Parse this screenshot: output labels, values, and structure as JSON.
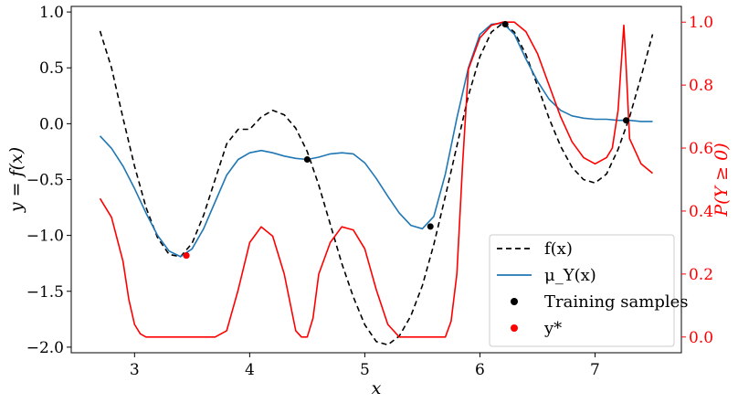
{
  "colors": {
    "f_line": "#000000",
    "mu_line": "#1f77b4",
    "prob_line": "#ff0000",
    "training_marker": "#000000",
    "ystar_marker": "#ff0000",
    "axis": "#000000",
    "right_axis": "#ff0000",
    "legend_border": "#cccccc"
  },
  "chart_data": {
    "type": "line",
    "title": "",
    "xlabel": "x",
    "ylabel": "y = f(x)",
    "ylabel_right": "P(Y ≥ 0)",
    "xlim": [
      2.45,
      7.75
    ],
    "ylim": [
      -2.05,
      1.05
    ],
    "ylim_right": [
      -0.05,
      1.05
    ],
    "x_ticks": [
      3,
      4,
      5,
      6,
      7
    ],
    "x_tick_labels": [
      "3",
      "4",
      "5",
      "6",
      "7"
    ],
    "y_ticks": [
      1.0,
      0.5,
      0.0,
      -0.5,
      -1.0,
      -1.5,
      -2.0
    ],
    "y_tick_labels": [
      "1.0",
      "0.5",
      "0.0",
      "−0.5",
      "−1.0",
      "−1.5",
      "−2.0"
    ],
    "y_right_ticks": [
      1.0,
      0.8,
      0.6,
      0.4,
      0.2,
      0.0
    ],
    "y_right_tick_labels": [
      "1.0",
      "0.8",
      "0.6",
      "0.4",
      "0.2",
      "0.0"
    ],
    "grid": false,
    "legend_position": "lower-right",
    "legend": [
      "f(x)",
      "μ_Y(x)",
      "Training samples",
      "y*"
    ],
    "series": [
      {
        "name": "f(x)",
        "axis": "left",
        "style": "dashed",
        "x": [
          2.7,
          2.8,
          2.9,
          3.0,
          3.1,
          3.2,
          3.3,
          3.4,
          3.5,
          3.6,
          3.7,
          3.8,
          3.9,
          4.0,
          4.1,
          4.2,
          4.3,
          4.4,
          4.5,
          4.6,
          4.7,
          4.8,
          4.9,
          5.0,
          5.1,
          5.2,
          5.3,
          5.4,
          5.5,
          5.6,
          5.7,
          5.8,
          5.9,
          6.0,
          6.1,
          6.2,
          6.3,
          6.4,
          6.5,
          6.6,
          6.7,
          6.8,
          6.9,
          7.0,
          7.1,
          7.2,
          7.3,
          7.4,
          7.5
        ],
        "values": [
          0.83,
          0.5,
          0.05,
          -0.38,
          -0.75,
          -1.02,
          -1.17,
          -1.19,
          -1.07,
          -0.82,
          -0.5,
          -0.18,
          -0.05,
          -0.05,
          0.06,
          0.12,
          0.08,
          -0.04,
          -0.25,
          -0.55,
          -0.9,
          -1.25,
          -1.55,
          -1.8,
          -1.95,
          -1.98,
          -1.9,
          -1.72,
          -1.45,
          -1.08,
          -0.65,
          -0.2,
          0.25,
          0.6,
          0.82,
          0.9,
          0.82,
          0.62,
          0.34,
          0.05,
          -0.2,
          -0.39,
          -0.5,
          -0.53,
          -0.45,
          -0.23,
          0.06,
          0.42,
          0.8
        ]
      },
      {
        "name": "μ_Y(x)",
        "axis": "left",
        "style": "solid",
        "x": [
          2.7,
          2.8,
          2.9,
          3.0,
          3.1,
          3.2,
          3.3,
          3.4,
          3.5,
          3.6,
          3.7,
          3.8,
          3.9,
          4.0,
          4.1,
          4.2,
          4.3,
          4.4,
          4.5,
          4.6,
          4.7,
          4.8,
          4.9,
          5.0,
          5.1,
          5.2,
          5.3,
          5.4,
          5.5,
          5.6,
          5.7,
          5.8,
          5.9,
          6.0,
          6.1,
          6.2,
          6.3,
          6.4,
          6.5,
          6.6,
          6.7,
          6.8,
          6.9,
          7.0,
          7.1,
          7.2,
          7.3,
          7.4,
          7.5
        ],
        "values": [
          -0.11,
          -0.22,
          -0.38,
          -0.58,
          -0.8,
          -1.0,
          -1.14,
          -1.19,
          -1.12,
          -0.94,
          -0.7,
          -0.46,
          -0.32,
          -0.26,
          -0.24,
          -0.26,
          -0.29,
          -0.31,
          -0.32,
          -0.3,
          -0.27,
          -0.26,
          -0.27,
          -0.35,
          -0.49,
          -0.65,
          -0.8,
          -0.91,
          -0.94,
          -0.83,
          -0.45,
          0.05,
          0.5,
          0.8,
          0.89,
          0.9,
          0.8,
          0.58,
          0.38,
          0.22,
          0.12,
          0.07,
          0.05,
          0.04,
          0.04,
          0.03,
          0.03,
          0.02,
          0.02
        ]
      },
      {
        "name": "P(Y ≥ 0)",
        "axis": "right",
        "style": "solid",
        "x": [
          2.7,
          2.8,
          2.9,
          2.95,
          3.0,
          3.05,
          3.1,
          3.2,
          3.3,
          3.4,
          3.5,
          3.6,
          3.7,
          3.8,
          3.9,
          4.0,
          4.1,
          4.2,
          4.3,
          4.4,
          4.45,
          4.5,
          4.55,
          4.6,
          4.7,
          4.8,
          4.9,
          5.0,
          5.1,
          5.2,
          5.3,
          5.4,
          5.5,
          5.6,
          5.7,
          5.75,
          5.8,
          5.85,
          5.9,
          6.0,
          6.1,
          6.2,
          6.3,
          6.4,
          6.5,
          6.6,
          6.7,
          6.8,
          6.9,
          7.0,
          7.1,
          7.15,
          7.2,
          7.25,
          7.27,
          7.3,
          7.4,
          7.5
        ],
        "values": [
          0.44,
          0.38,
          0.24,
          0.12,
          0.04,
          0.01,
          0.0,
          0.0,
          0.0,
          0.0,
          0.0,
          0.0,
          0.0,
          0.02,
          0.15,
          0.3,
          0.35,
          0.32,
          0.2,
          0.02,
          0.0,
          0.0,
          0.06,
          0.2,
          0.3,
          0.35,
          0.34,
          0.28,
          0.15,
          0.04,
          0.0,
          0.0,
          0.0,
          0.0,
          0.0,
          0.05,
          0.2,
          0.55,
          0.85,
          0.95,
          0.99,
          1.0,
          1.0,
          0.97,
          0.9,
          0.8,
          0.7,
          0.62,
          0.57,
          0.55,
          0.57,
          0.6,
          0.72,
          0.99,
          0.86,
          0.63,
          0.55,
          0.52
        ]
      }
    ],
    "training_samples": {
      "name": "Training samples",
      "x": [
        3.45,
        4.5,
        5.57,
        6.22,
        7.27
      ],
      "values": [
        -1.18,
        -0.32,
        -0.92,
        0.89,
        0.03
      ]
    },
    "y_star": {
      "name": "y*",
      "x": [
        3.45
      ],
      "values": [
        -1.18
      ]
    }
  }
}
